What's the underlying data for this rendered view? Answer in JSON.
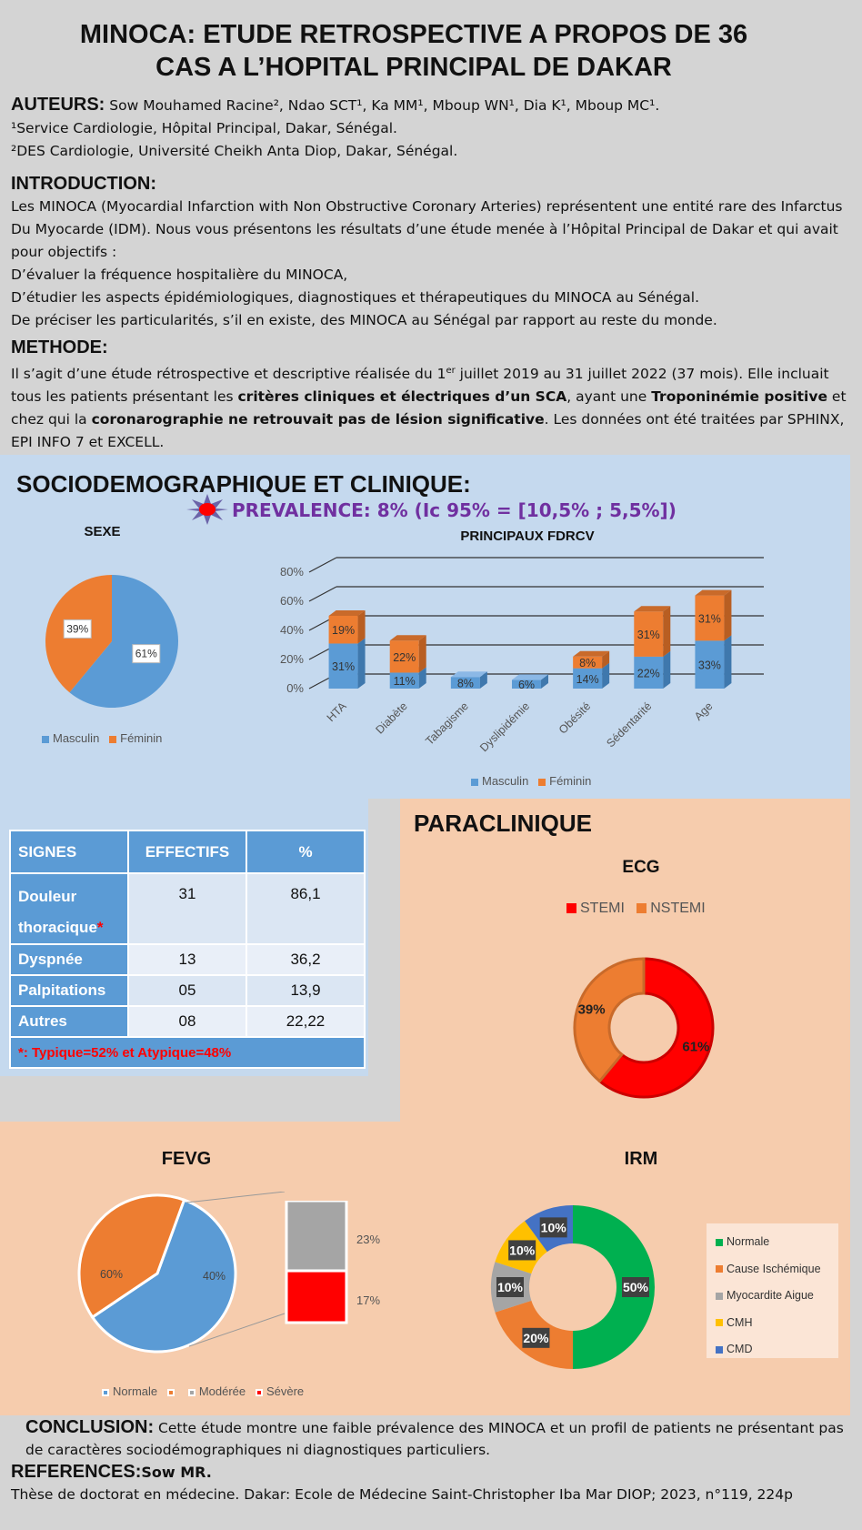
{
  "title_line1": "MINOCA: ETUDE RETROSPECTIVE A PROPOS DE 36",
  "title_line2": "CAS A L’HOPITAL PRINCIPAL DE DAKAR",
  "authors": {
    "label": "AUTEURS:",
    "names": " Sow Mouhamed Racine², Ndao SCT¹, Ka MM¹, Mboup WN¹, Dia K¹, Mboup MC¹.",
    "aff1": "¹Service Cardiologie, Hôpital Principal, Dakar, Sénégal.",
    "aff2": "²DES Cardiologie, Université Cheikh Anta Diop, Dakar, Sénégal."
  },
  "introduction": {
    "heading": "INTRODUCTION:",
    "p1": "Les MINOCA (Myocardial Infarction with Non Obstructive Coronary Arteries) représentent une entité rare des Infarctus Du Myocarde (IDM). Nous vous présentons les résultats d’une étude menée à l’Hôpital Principal de Dakar et qui avait pour objectifs :",
    "l1": "D’évaluer la fréquence hospitalière du MINOCA,",
    "l2": "D’étudier les aspects épidémiologiques, diagnostiques et thérapeutiques du MINOCA au Sénégal.",
    "l3": "De préciser les particularités, s’il en existe, des MINOCA au Sénégal par rapport au reste du monde."
  },
  "methode": {
    "heading": "METHODE:",
    "a": "Il s’agit d’une étude rétrospective et descriptive réalisée du 1",
    "sup": "er",
    "b": " juillet 2019 au 31 juillet 2022 (37 mois). Elle incluait tous les patients présentant les ",
    "bold1": "critères cliniques et électriques d’un SCA",
    "c": ", ayant une ",
    "bold2": "Troponinémie positive",
    "d": " et chez qui la ",
    "bold3": "coronarographie ne retrouvait pas de lésion significative",
    "e": ". Les données ont été traitées par SPHINX, EPI INFO 7 et EXCELL."
  },
  "socio": {
    "heading": "SOCIODEMOGRAPHIQUE ET CLINIQUE:",
    "prevalence": "PREVALENCE: 8% (Ic 95% = [10,5% ; 5,5%])"
  },
  "colors": {
    "blue": "#5b9bd5",
    "orange": "#ed7d31",
    "gray": "#a5a5a5",
    "yellow": "#ffc000",
    "darkblue": "#4472c4",
    "green": "#00b050",
    "red": "#ff0000",
    "purple": "#7030a0"
  },
  "chart_data": [
    {
      "id": "sexe",
      "type": "pie",
      "title": "SEXE",
      "categories": [
        "Masculin",
        "Féminin"
      ],
      "values": [
        61,
        39
      ],
      "labels": [
        "61%",
        "39%"
      ]
    },
    {
      "id": "fdrcv",
      "type": "bar",
      "stacked": true,
      "title": "PRINCIPAUX FDRCV",
      "categories": [
        "HTA",
        "Diabète",
        "Tabagisme",
        "Dyslipidémie",
        "Obésité",
        "Sédentarité",
        "Age"
      ],
      "series": [
        {
          "name": "Masculin",
          "values": [
            31,
            11,
            8,
            6,
            14,
            22,
            33
          ],
          "labels": [
            "31%",
            "11%",
            "8%",
            "6%",
            "14%",
            "22%",
            "33%"
          ]
        },
        {
          "name": "Féminin",
          "values": [
            19,
            22,
            0,
            0,
            8,
            31,
            31
          ],
          "labels": [
            "19%",
            "22%",
            "",
            "",
            "8%",
            "31%",
            "31%"
          ]
        }
      ],
      "yticks": [
        "0%",
        "20%",
        "40%",
        "60%",
        "80%"
      ],
      "ylim": [
        0,
        80
      ]
    },
    {
      "id": "signes",
      "type": "table",
      "headers": [
        "SIGNES",
        "EFFECTIFS",
        "%"
      ],
      "rows": [
        {
          "label": "Douleur thoracique",
          "star": "*",
          "n": "31",
          "pct": "86,1"
        },
        {
          "label": "Dyspnée",
          "n": "13",
          "pct": "36,2"
        },
        {
          "label": "Palpitations",
          "n": "05",
          "pct": "13,9"
        },
        {
          "label": "Autres",
          "n": "08",
          "pct": "22,22"
        }
      ],
      "footnote": "*: Typique=52% et Atypique=48%"
    },
    {
      "id": "ecg",
      "type": "pie",
      "donut": true,
      "title": "ECG",
      "categories": [
        "STEMI",
        "NSTEMI"
      ],
      "values": [
        61,
        39
      ],
      "labels": [
        "61%",
        "39%"
      ]
    },
    {
      "id": "fevg",
      "type": "pie",
      "title": "FEVG",
      "categories": [
        "Normale",
        "",
        "Modérée",
        "Sévère"
      ],
      "values": [
        60,
        40
      ],
      "labels": [
        "60%",
        "40%"
      ],
      "breakdown": {
        "values": [
          23,
          17
        ],
        "labels": [
          "23%",
          "17%"
        ]
      }
    },
    {
      "id": "irm",
      "type": "pie",
      "donut": true,
      "title": "IRM",
      "categories": [
        "Normale",
        "Cause Ischémique",
        "Myocardite Aigue",
        "CMH",
        "CMD"
      ],
      "values": [
        50,
        20,
        10,
        10,
        10
      ],
      "labels": [
        "50%",
        "20%",
        "10%",
        "10%",
        "10%"
      ]
    }
  ],
  "paraclinique": {
    "heading": "PARACLINIQUE"
  },
  "conclusion": {
    "label": "CONCLUSION:",
    "text": " Cette étude montre une faible prévalence des MINOCA et un profil de patients ne présentant pas de caractères sociodémographiques ni diagnostiques particuliers."
  },
  "references": {
    "label": "REFERENCES:",
    "author": "Sow MR.",
    "text": "Thèse de doctorat en médecine. Dakar: Ecole de Médecine Saint-Christopher Iba Mar DIOP; 2023, n°119, 224p"
  }
}
